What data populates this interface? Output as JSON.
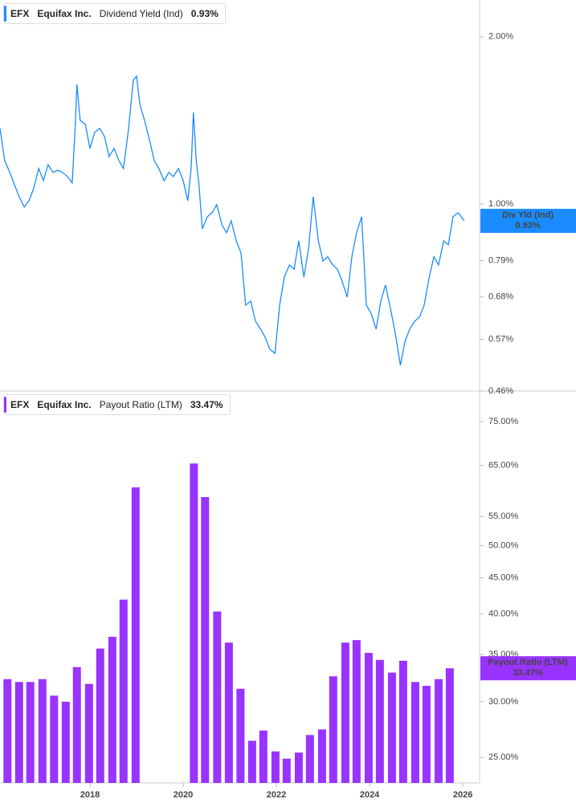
{
  "chart_data": [
    {
      "type": "line",
      "ticker": "EFX",
      "company": "Equifax Inc.",
      "title": "Dividend Yield (Ind)",
      "current_label": "0.93%",
      "log_scale": true,
      "grid": false,
      "xlim": [
        2016.07,
        2026.36
      ],
      "ylim": [
        0.46,
        2.33
      ],
      "yticks": [
        {
          "value": 0.46,
          "label": "0.46%"
        },
        {
          "value": 0.57,
          "label": "0.57%"
        },
        {
          "value": 0.68,
          "label": "0.68%"
        },
        {
          "value": 0.79,
          "label": "0.79%"
        },
        {
          "value": 1,
          "label": "1.00%"
        },
        {
          "value": 2,
          "label": "2.00%"
        }
      ],
      "series": [
        {
          "name": "Div Yld (Ind)",
          "color": "#1a8cff",
          "x": [
            2016.07,
            2016.17,
            2016.28,
            2016.38,
            2016.48,
            2016.59,
            2016.69,
            2016.79,
            2016.9,
            2017.0,
            2017.1,
            2017.21,
            2017.31,
            2017.41,
            2017.52,
            2017.62,
            2017.69,
            2017.72,
            2017.79,
            2017.9,
            2018.0,
            2018.1,
            2018.21,
            2018.31,
            2018.41,
            2018.52,
            2018.62,
            2018.72,
            2018.83,
            2018.93,
            2019.0,
            2019.07,
            2019.17,
            2019.28,
            2019.38,
            2019.48,
            2019.59,
            2019.69,
            2019.79,
            2019.9,
            2020.0,
            2020.1,
            2020.17,
            2020.22,
            2020.28,
            2020.34,
            2020.41,
            2020.52,
            2020.62,
            2020.72,
            2020.83,
            2020.93,
            2021.03,
            2021.14,
            2021.24,
            2021.34,
            2021.45,
            2021.55,
            2021.66,
            2021.76,
            2021.86,
            2021.97,
            2022.07,
            2022.17,
            2022.28,
            2022.38,
            2022.48,
            2022.59,
            2022.69,
            2022.79,
            2022.9,
            2023.0,
            2023.1,
            2023.21,
            2023.31,
            2023.41,
            2023.52,
            2023.62,
            2023.72,
            2023.83,
            2023.93,
            2024.03,
            2024.14,
            2024.24,
            2024.34,
            2024.45,
            2024.55,
            2024.66,
            2024.76,
            2024.86,
            2024.97,
            2025.07,
            2025.17,
            2025.28,
            2025.38,
            2025.48,
            2025.59,
            2025.69,
            2025.79,
            2025.9,
            2026.03
          ],
          "values": [
            1.368,
            1.197,
            1.139,
            1.083,
            1.03,
            0.987,
            1.013,
            1.065,
            1.158,
            1.101,
            1.177,
            1.139,
            1.15,
            1.139,
            1.12,
            1.091,
            1.414,
            1.643,
            1.414,
            1.391,
            1.259,
            1.345,
            1.368,
            1.323,
            1.217,
            1.259,
            1.197,
            1.158,
            1.368,
            1.671,
            1.699,
            1.512,
            1.414,
            1.301,
            1.197,
            1.158,
            1.101,
            1.139,
            1.12,
            1.158,
            1.101,
            1.013,
            1.158,
            1.462,
            1.197,
            1.083,
            0.902,
            0.948,
            0.964,
            0.997,
            0.917,
            0.887,
            0.932,
            0.858,
            0.816,
            0.657,
            0.668,
            0.615,
            0.595,
            0.575,
            0.547,
            0.538,
            0.657,
            0.738,
            0.776,
            0.763,
            0.858,
            0.738,
            0.83,
            1.03,
            0.858,
            0.789,
            0.803,
            0.776,
            0.763,
            0.726,
            0.679,
            0.803,
            0.887,
            0.948,
            0.657,
            0.636,
            0.595,
            0.668,
            0.714,
            0.646,
            0.585,
            0.512,
            0.566,
            0.595,
            0.615,
            0.625,
            0.657,
            0.738,
            0.803,
            0.776,
            0.858,
            0.844,
            0.948,
            0.964,
            0.932
          ]
        }
      ]
    },
    {
      "type": "bar",
      "ticker": "EFX",
      "company": "Equifax Inc.",
      "title": "Payout Ratio (LTM)",
      "current_label": "33.47%",
      "log_scale": true,
      "grid": false,
      "xlim": [
        2016.07,
        2026.36
      ],
      "xticks": [
        2018,
        2020,
        2022,
        2024,
        2026
      ],
      "ylim": [
        23,
        82.9
      ],
      "yticks": [
        {
          "value": 25,
          "label": "25.00%"
        },
        {
          "value": 30,
          "label": "30.00%"
        },
        {
          "value": 35,
          "label": "35.00%"
        },
        {
          "value": 40,
          "label": "40.00%"
        },
        {
          "value": 45,
          "label": "45.00%"
        },
        {
          "value": 50,
          "label": "50.00%"
        },
        {
          "value": 55,
          "label": "55.00%"
        },
        {
          "value": 65,
          "label": "65.00%"
        },
        {
          "value": 75,
          "label": "75.00%"
        }
      ],
      "series": [
        {
          "name": "Payout Ratio (LTM)",
          "color": "#9933ff",
          "x": [
            2016.23,
            2016.48,
            2016.72,
            2016.98,
            2017.23,
            2017.48,
            2017.72,
            2017.98,
            2018.22,
            2018.48,
            2018.72,
            2018.98,
            2020.23,
            2020.47,
            2020.73,
            2020.98,
            2021.23,
            2021.48,
            2021.72,
            2021.98,
            2022.22,
            2022.48,
            2022.72,
            2022.98,
            2023.22,
            2023.48,
            2023.72,
            2023.98,
            2024.22,
            2024.48,
            2024.72,
            2024.98,
            2025.22,
            2025.48,
            2025.72
          ],
          "values": [
            32.3,
            32.0,
            32.0,
            32.3,
            30.6,
            30.0,
            33.6,
            31.8,
            35.7,
            37.1,
            41.9,
            60.5,
            65.4,
            58.6,
            40.3,
            36.4,
            31.3,
            26.4,
            27.3,
            25.5,
            24.9,
            25.4,
            26.9,
            27.4,
            32.6,
            36.4,
            36.7,
            35.2,
            34.4,
            33.0,
            34.3,
            32.0,
            31.6,
            32.3,
            33.47
          ]
        }
      ]
    }
  ]
}
